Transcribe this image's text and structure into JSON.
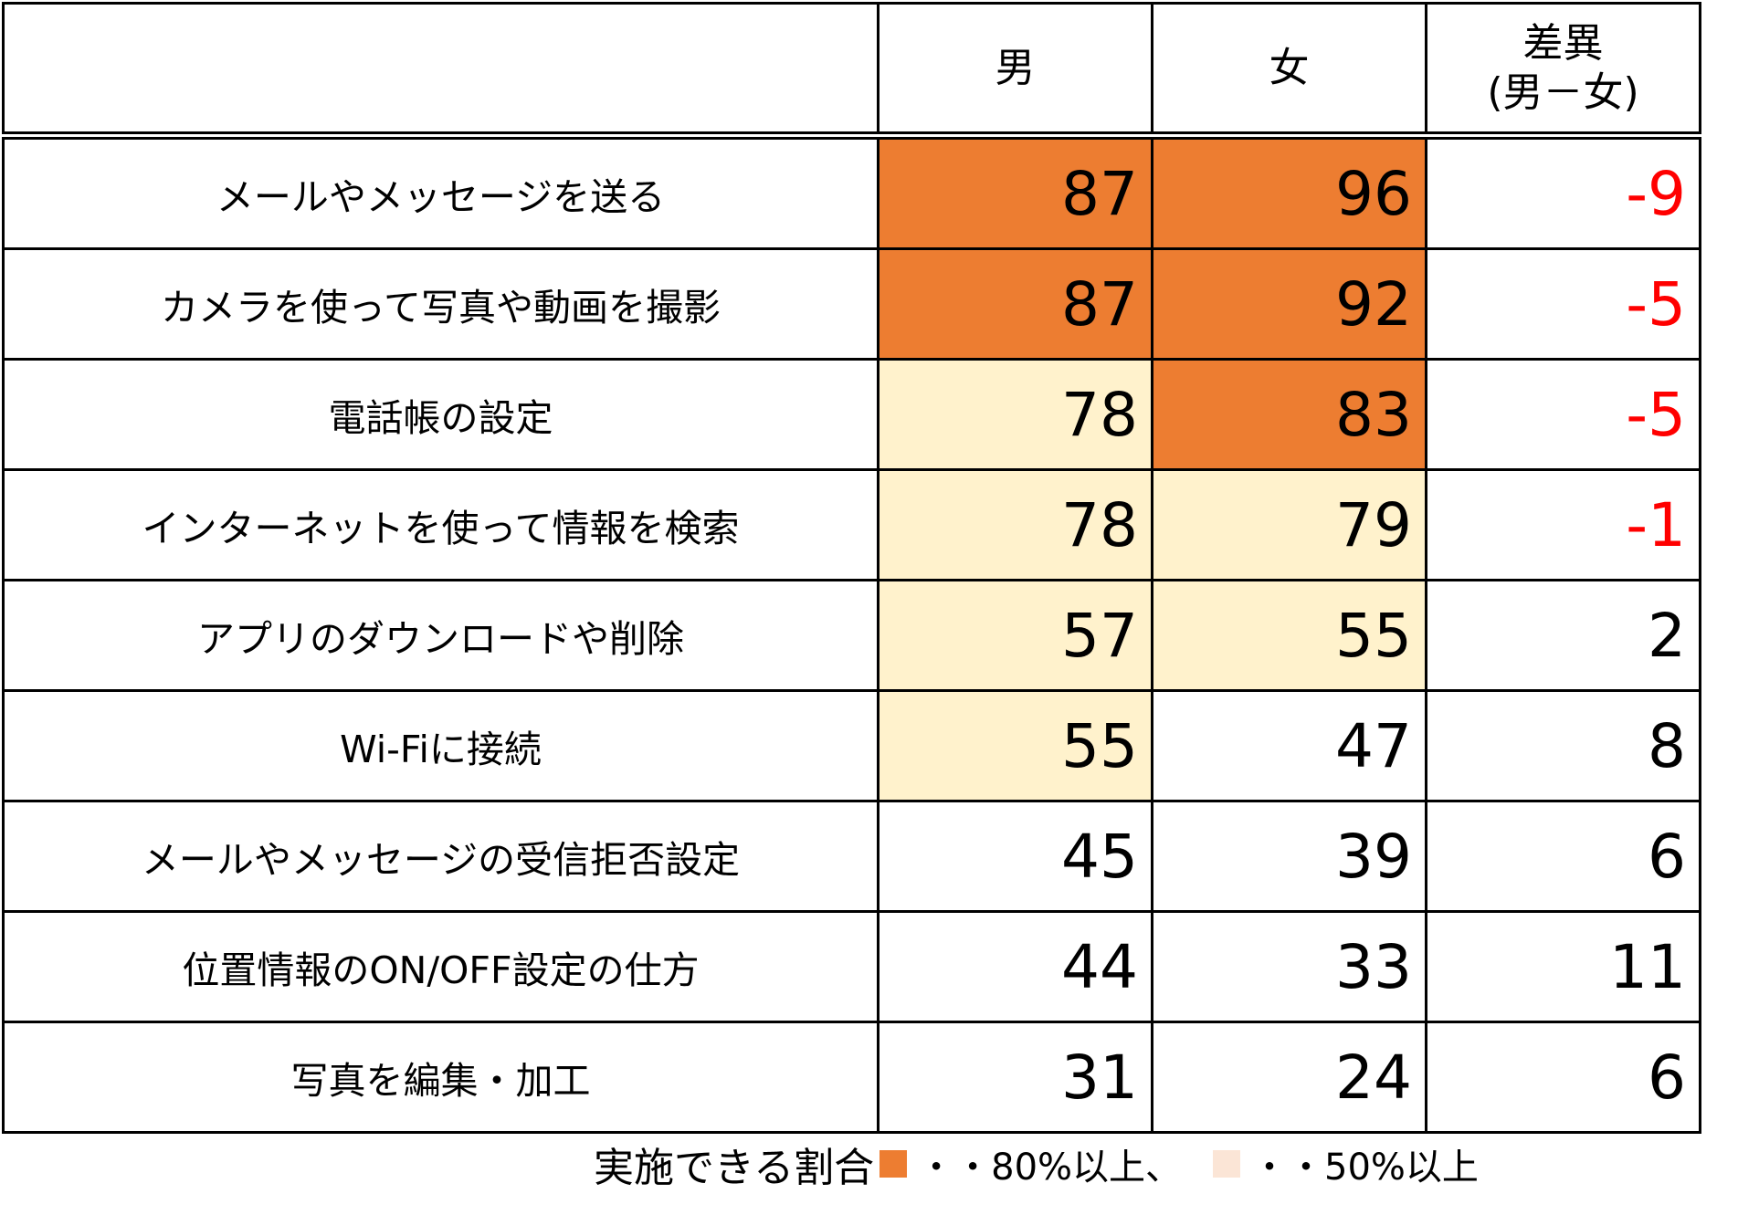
{
  "chart_data": {
    "type": "table",
    "columns": {
      "male": "男",
      "female": "女",
      "diff_line1": "差異",
      "diff_line2": "(男－女)"
    },
    "rows": [
      {
        "label": "メールやメッセージを送る",
        "male": 87,
        "female": 96,
        "diff": -9
      },
      {
        "label": "カメラを使って写真や動画を撮影",
        "male": 87,
        "female": 92,
        "diff": -5
      },
      {
        "label": "電話帳の設定",
        "male": 78,
        "female": 83,
        "diff": -5
      },
      {
        "label": "インターネットを使って情報を検索",
        "male": 78,
        "female": 79,
        "diff": -1
      },
      {
        "label": "アプリのダウンロードや削除",
        "male": 57,
        "female": 55,
        "diff": 2
      },
      {
        "label": "Wi-Fiに接続",
        "male": 55,
        "female": 47,
        "diff": 8
      },
      {
        "label": "メールやメッセージの受信拒否設定",
        "male": 45,
        "female": 39,
        "diff": 6
      },
      {
        "label": "位置情報のON/OFF設定の仕方",
        "male": 44,
        "female": 33,
        "diff": 11
      },
      {
        "label": "写真を編集・加工",
        "male": 31,
        "female": 24,
        "diff": 6
      }
    ],
    "thresholds": {
      "high": 80,
      "mid": 50
    },
    "colors": {
      "high": "#ED7D31",
      "mid": "#FFF2CC",
      "legend_mid_swatch": "#FBE5D6",
      "negative": "#FF0000",
      "positive": "#000000"
    }
  },
  "legend": {
    "prefix": "実施できる割合",
    "high_text": "・・80%以上、",
    "mid_text": "・・50%以上"
  }
}
